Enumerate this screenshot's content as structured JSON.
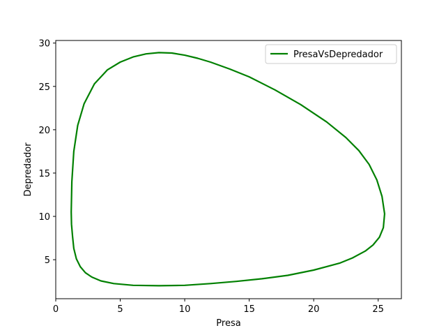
{
  "chart_data": {
    "type": "line",
    "title": "",
    "xlabel": "Presa",
    "ylabel": "Depredador",
    "xlim": [
      0,
      26.8
    ],
    "ylim": [
      0.5,
      30.3
    ],
    "xticks": [
      0,
      5,
      10,
      15,
      20,
      25
    ],
    "yticks": [
      5,
      10,
      15,
      20,
      25,
      30
    ],
    "grid": false,
    "legend": {
      "placement": "top-right"
    },
    "series": [
      {
        "name": "PresaVsDepredador",
        "color": "#008000",
        "x": [
          1.2,
          1.25,
          1.4,
          1.7,
          2.2,
          3.0,
          4.0,
          5.0,
          6.0,
          7.0,
          8.0,
          9.0,
          10.0,
          11.0,
          12.0,
          13.5,
          15.0,
          17.0,
          19.0,
          21.0,
          22.5,
          23.5,
          24.3,
          24.9,
          25.3,
          25.5,
          25.4,
          25.1,
          24.6,
          24.0,
          23.0,
          22.0,
          20.0,
          18.0,
          16.0,
          14.0,
          12.0,
          10.0,
          8.0,
          6.0,
          4.5,
          3.5,
          2.8,
          2.3,
          1.9,
          1.6,
          1.4,
          1.3,
          1.22,
          1.2
        ],
        "y": [
          10.5,
          14.0,
          17.5,
          20.5,
          23.0,
          25.3,
          26.9,
          27.8,
          28.4,
          28.75,
          28.9,
          28.85,
          28.6,
          28.25,
          27.8,
          27.0,
          26.1,
          24.6,
          22.9,
          20.9,
          19.1,
          17.6,
          16.0,
          14.2,
          12.3,
          10.3,
          8.7,
          7.6,
          6.7,
          6.0,
          5.2,
          4.6,
          3.8,
          3.2,
          2.8,
          2.5,
          2.25,
          2.05,
          2.0,
          2.05,
          2.25,
          2.55,
          3.0,
          3.5,
          4.2,
          5.1,
          6.3,
          7.7,
          9.1,
          10.5
        ]
      }
    ]
  }
}
